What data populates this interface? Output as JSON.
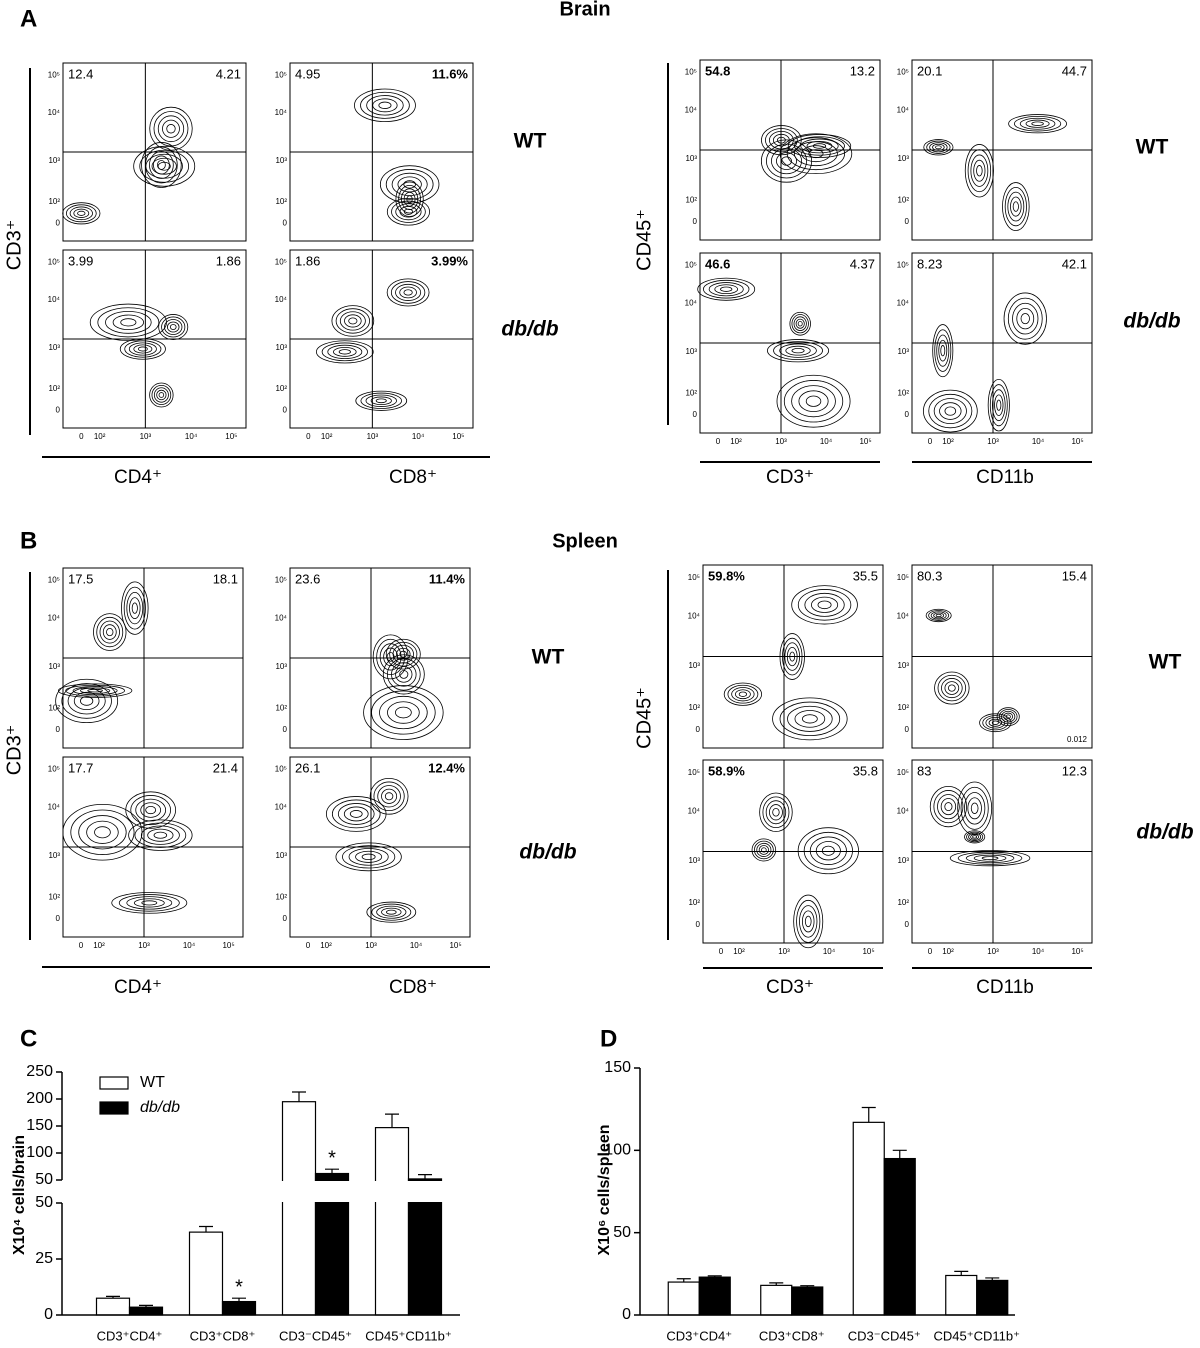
{
  "panels": [
    {
      "label": "A",
      "title": "Brain",
      "groups": [
        {
          "y_label": "CD3⁺",
          "x_labels": [
            "CD4⁺",
            "CD8⁺"
          ],
          "rows": [
            {
              "name": "WT",
              "style": "normal",
              "plots": [
                {
                  "tl": "12.4",
                  "tr": "4.21"
                },
                {
                  "tl": "4.95",
                  "tr": "11.6%",
                  "bold": "tr"
                }
              ]
            },
            {
              "name": "db/db",
              "style": "italic",
              "plots": [
                {
                  "tl": "3.99",
                  "tr": "1.86"
                },
                {
                  "tl": "1.86",
                  "tr": "3.99%",
                  "bold": "tr"
                }
              ]
            }
          ]
        },
        {
          "y_label": "CD45⁺",
          "x_labels": [
            "CD3⁺",
            "CD11b"
          ],
          "rows": [
            {
              "name": "WT",
              "style": "normal",
              "plots": [
                {
                  "tl": "54.8",
                  "tr": "13.2",
                  "bold": "tl"
                },
                {
                  "tl": "20.1",
                  "tr": "44.7"
                }
              ]
            },
            {
              "name": "db/db",
              "style": "italic",
              "plots": [
                {
                  "tl": "46.6",
                  "tr": "4.37",
                  "bold": "tl"
                },
                {
                  "tl": "8.23",
                  "tr": "42.1"
                }
              ]
            }
          ]
        }
      ]
    },
    {
      "label": "B",
      "title": "Spleen",
      "groups": [
        {
          "y_label": "CD3⁺",
          "x_labels": [
            "CD4⁺",
            "CD8⁺"
          ],
          "rows": [
            {
              "name": "WT",
              "style": "normal",
              "plots": [
                {
                  "tl": "17.5",
                  "tr": "18.1"
                },
                {
                  "tl": "23.6",
                  "tr": "11.4%",
                  "bold": "tr"
                }
              ]
            },
            {
              "name": "db/db",
              "style": "italic",
              "plots": [
                {
                  "tl": "17.7",
                  "tr": "21.4"
                },
                {
                  "tl": "26.1",
                  "tr": "12.4%",
                  "bold": "tr"
                }
              ]
            }
          ]
        },
        {
          "y_label": "CD45⁺",
          "x_labels": [
            "CD3⁺",
            "CD11b"
          ],
          "rows": [
            {
              "name": "WT",
              "style": "normal",
              "plots": [
                {
                  "tl": "59.8%",
                  "tr": "35.5",
                  "bold": "tl"
                },
                {
                  "tl": "80.3",
                  "tr": "15.4",
                  "br": "0.012"
                }
              ]
            },
            {
              "name": "db/db",
              "style": "italic",
              "plots": [
                {
                  "tl": "58.9%",
                  "tr": "35.8",
                  "bold": "tl"
                },
                {
                  "tl": "83",
                  "tr": "12.3"
                }
              ]
            }
          ]
        }
      ]
    }
  ],
  "flow_ticks": [
    "0",
    "10²",
    "10³",
    "10⁴",
    "10⁵"
  ],
  "chart_data": [
    {
      "type": "bar",
      "label": "C",
      "ylabel": "X10⁴ cells/brain",
      "legend": "upper left",
      "categories": [
        "CD3⁺CD4⁺",
        "CD3⁺CD8⁺",
        "CD3⁻CD45⁺",
        "CD45⁺CD11b⁺"
      ],
      "segments": [
        {
          "ylim": [
            0,
            50
          ],
          "yticks": [
            0,
            25,
            50
          ]
        },
        {
          "ylim": [
            50,
            250
          ],
          "yticks": [
            50,
            100,
            150,
            200,
            250
          ]
        }
      ],
      "series": [
        {
          "name": "WT",
          "color": "#ffffff",
          "values": [
            7.5,
            37,
            195,
            147
          ],
          "errors": [
            0.8,
            2.5,
            18,
            25
          ]
        },
        {
          "name": "db/db",
          "color": "#000000",
          "values": [
            3.5,
            6,
            62,
            52
          ],
          "errors": [
            0.8,
            1.5,
            8,
            8
          ],
          "flags": [
            null,
            "*",
            "*",
            null
          ]
        }
      ]
    },
    {
      "type": "bar",
      "label": "D",
      "ylabel": "X10⁶ cells/spleen",
      "categories": [
        "CD3⁺CD4⁺",
        "CD3⁺CD8⁺",
        "CD3⁻CD45⁺",
        "CD45⁺CD11b⁺"
      ],
      "segments": [
        {
          "ylim": [
            0,
            150
          ],
          "yticks": [
            0,
            50,
            100,
            150
          ]
        }
      ],
      "series": [
        {
          "name": "WT",
          "color": "#ffffff",
          "values": [
            20,
            18,
            117,
            24
          ],
          "errors": [
            2,
            1.5,
            9,
            2.5
          ]
        },
        {
          "name": "db/db",
          "color": "#000000",
          "values": [
            23,
            17,
            95,
            21
          ],
          "errors": [
            0.8,
            0.8,
            5,
            1.5
          ]
        }
      ]
    }
  ]
}
